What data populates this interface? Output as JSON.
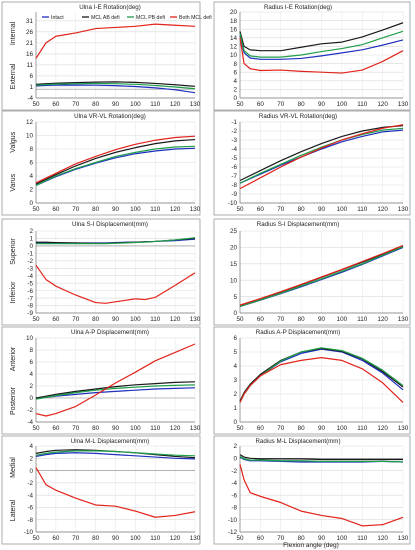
{
  "figure": {
    "x_axis_label": "Flexion angle (deg)",
    "legend": [
      "Intact",
      "MCL AB defi",
      "MCL PB defi",
      "Both MCL defi"
    ],
    "series_colors": {
      "Intact": "#1f2fbf",
      "MCL AB defi": "#1a1a1a",
      "MCL PB defi": "#1f9e4a",
      "Both MCL defi": "#e2231a"
    }
  },
  "chart_data": [
    {
      "type": "line",
      "title": "Ulna I-E Rotation(deg)",
      "side_labels": [
        "Internal",
        "External"
      ],
      "ylim": [
        -4,
        35
      ],
      "yticks": [
        -4,
        1,
        6,
        11,
        16,
        21,
        26,
        31
      ],
      "xlim": [
        50,
        130
      ],
      "xticks": [
        50,
        60,
        70,
        80,
        90,
        100,
        110,
        120,
        130
      ],
      "x": [
        50,
        55,
        60,
        70,
        80,
        90,
        100,
        110,
        120,
        130
      ],
      "legend_position": "top",
      "series": [
        {
          "name": "Intact",
          "values": [
            1.5,
            1.7,
            1.8,
            1.9,
            1.8,
            1.6,
            1.2,
            0.6,
            -0.3,
            -1.6
          ]
        },
        {
          "name": "MCL AB defi",
          "values": [
            2.2,
            2.5,
            2.7,
            3.0,
            3.2,
            3.3,
            3.1,
            2.6,
            2.0,
            1.3
          ]
        },
        {
          "name": "MCL PB defi",
          "values": [
            1.8,
            2.1,
            2.3,
            2.5,
            2.6,
            2.5,
            2.2,
            1.7,
            1.0,
            0.2
          ]
        },
        {
          "name": "Both MCL defi",
          "values": [
            14,
            21,
            24,
            25.5,
            27.5,
            28,
            28.5,
            29.5,
            29,
            28.5
          ]
        }
      ]
    },
    {
      "type": "line",
      "title": "Radius I-E Rotation(deg)",
      "side_labels": [],
      "ylim": [
        0,
        20
      ],
      "yticks": [
        0,
        2,
        4,
        6,
        8,
        10,
        12,
        14,
        16,
        18,
        20
      ],
      "xlim": [
        50,
        130
      ],
      "xticks": [
        50,
        60,
        70,
        80,
        90,
        100,
        110,
        120,
        130
      ],
      "x": [
        50,
        52,
        55,
        60,
        70,
        80,
        90,
        100,
        110,
        120,
        130
      ],
      "series": [
        {
          "name": "Intact",
          "values": [
            14.5,
            10.5,
            9.3,
            9.0,
            9.0,
            9.2,
            9.8,
            10.5,
            11.2,
            12.3,
            13.5
          ]
        },
        {
          "name": "MCL AB defi",
          "values": [
            15.5,
            12.0,
            11.2,
            11.0,
            11.0,
            11.8,
            12.6,
            13.0,
            14.2,
            15.8,
            17.5
          ]
        },
        {
          "name": "MCL PB defi",
          "values": [
            15.0,
            11.0,
            9.8,
            9.5,
            9.5,
            10.0,
            10.8,
            11.5,
            12.4,
            14.0,
            15.5
          ]
        },
        {
          "name": "Both MCL defi",
          "values": [
            14.0,
            8.0,
            6.8,
            6.4,
            6.5,
            6.2,
            6.0,
            5.8,
            6.5,
            8.5,
            11.0
          ]
        }
      ]
    },
    {
      "type": "line",
      "title": "Ulna VR-VL Rotation(deg)",
      "side_labels": [
        "Valgus",
        "Varus"
      ],
      "ylim": [
        0,
        12
      ],
      "yticks": [
        0,
        2,
        4,
        6,
        8,
        10,
        12
      ],
      "xlim": [
        50,
        130
      ],
      "xticks": [
        50,
        60,
        70,
        80,
        90,
        100,
        110,
        120,
        130
      ],
      "x": [
        50,
        60,
        70,
        80,
        90,
        100,
        110,
        120,
        130
      ],
      "series": [
        {
          "name": "Intact",
          "values": [
            2.6,
            3.9,
            5.0,
            5.9,
            6.7,
            7.3,
            7.7,
            8.0,
            8.1
          ]
        },
        {
          "name": "MCL AB defi",
          "values": [
            2.8,
            4.2,
            5.5,
            6.6,
            7.5,
            8.2,
            8.8,
            9.2,
            9.4
          ]
        },
        {
          "name": "MCL PB defi",
          "values": [
            2.6,
            4.0,
            5.1,
            6.0,
            6.9,
            7.5,
            8.0,
            8.3,
            8.4
          ]
        },
        {
          "name": "Both MCL defi",
          "values": [
            3.0,
            4.4,
            5.8,
            6.9,
            7.9,
            8.7,
            9.3,
            9.7,
            9.9
          ]
        }
      ]
    },
    {
      "type": "line",
      "title": "Radius VR-VL Rotation(deg)",
      "side_labels": [],
      "ylim": [
        -10,
        -1
      ],
      "yticks": [
        -10,
        -9,
        -8,
        -7,
        -6,
        -5,
        -4,
        -3,
        -2,
        -1
      ],
      "xlim": [
        50,
        130
      ],
      "xticks": [
        50,
        60,
        70,
        80,
        90,
        100,
        110,
        120,
        130
      ],
      "x": [
        50,
        60,
        70,
        80,
        90,
        100,
        110,
        120,
        130
      ],
      "series": [
        {
          "name": "Intact",
          "values": [
            -7.8,
            -6.8,
            -5.8,
            -4.9,
            -4.0,
            -3.2,
            -2.6,
            -2.1,
            -1.9
          ]
        },
        {
          "name": "MCL AB defi",
          "values": [
            -7.5,
            -6.4,
            -5.3,
            -4.3,
            -3.4,
            -2.6,
            -2.0,
            -1.6,
            -1.4
          ]
        },
        {
          "name": "MCL PB defi",
          "values": [
            -7.8,
            -6.7,
            -5.7,
            -4.7,
            -3.8,
            -3.0,
            -2.4,
            -1.9,
            -1.7
          ]
        },
        {
          "name": "Both MCL defi",
          "values": [
            -8.4,
            -7.2,
            -6.0,
            -4.9,
            -3.9,
            -3.0,
            -2.3,
            -1.7,
            -1.3
          ]
        }
      ]
    },
    {
      "type": "line",
      "title": "Ulna S-I Displacement(mm)",
      "side_labels": [
        "Superior",
        "Inferior"
      ],
      "ylim": [
        -9,
        2
      ],
      "yticks": [
        -9,
        -8,
        -7,
        -6,
        -5,
        -4,
        -3,
        -2,
        -1,
        0,
        1,
        2
      ],
      "xlim": [
        50,
        130
      ],
      "xticks": [
        50,
        60,
        70,
        80,
        90,
        100,
        110,
        120,
        130
      ],
      "x": [
        50,
        55,
        60,
        70,
        80,
        85,
        90,
        95,
        100,
        105,
        110,
        120,
        130
      ],
      "series": [
        {
          "name": "Intact",
          "values": [
            0.4,
            0.4,
            0.4,
            0.4,
            0.4,
            0.4,
            0.45,
            0.5,
            0.5,
            0.55,
            0.6,
            0.7,
            0.9
          ]
        },
        {
          "name": "MCL AB defi",
          "values": [
            0.5,
            0.5,
            0.45,
            0.4,
            0.35,
            0.35,
            0.4,
            0.45,
            0.5,
            0.55,
            0.6,
            0.8,
            1.0
          ]
        },
        {
          "name": "MCL PB defi",
          "values": [
            0.3,
            0.3,
            0.3,
            0.3,
            0.3,
            0.3,
            0.35,
            0.4,
            0.45,
            0.5,
            0.6,
            0.8,
            1.1
          ]
        },
        {
          "name": "Both MCL defi",
          "values": [
            -2.6,
            -4.5,
            -5.4,
            -6.6,
            -7.6,
            -7.7,
            -7.5,
            -7.3,
            -7.1,
            -7.2,
            -6.9,
            -5.3,
            -3.6
          ]
        }
      ]
    },
    {
      "type": "line",
      "title": "Radius S-I Displacement(mm)",
      "side_labels": [],
      "ylim": [
        0,
        25
      ],
      "yticks": [
        0,
        5,
        10,
        15,
        20,
        25
      ],
      "xlim": [
        50,
        130
      ],
      "xticks": [
        50,
        60,
        70,
        80,
        90,
        100,
        110,
        120,
        130
      ],
      "x": [
        50,
        60,
        70,
        80,
        90,
        100,
        110,
        120,
        130
      ],
      "series": [
        {
          "name": "Intact",
          "values": [
            2.0,
            3.9,
            5.9,
            8.0,
            10.2,
            12.4,
            14.8,
            17.4,
            20.0
          ]
        },
        {
          "name": "MCL AB defi",
          "values": [
            2.3,
            4.3,
            6.4,
            8.6,
            10.9,
            13.2,
            15.5,
            17.9,
            20.4
          ]
        },
        {
          "name": "MCL PB defi",
          "values": [
            2.0,
            4.0,
            6.0,
            8.2,
            10.4,
            12.7,
            15.0,
            17.6,
            20.2
          ]
        },
        {
          "name": "Both MCL defi",
          "values": [
            2.4,
            4.4,
            6.5,
            8.7,
            11.0,
            13.3,
            15.7,
            18.1,
            20.6
          ]
        }
      ]
    },
    {
      "type": "line",
      "title": "Ulna A-P Displacement(mm)",
      "side_labels": [
        "Anterior",
        "Posterior"
      ],
      "ylim": [
        -4,
        10
      ],
      "yticks": [
        -4,
        -2,
        0,
        2,
        4,
        6,
        8,
        10
      ],
      "xlim": [
        50,
        130
      ],
      "xticks": [
        50,
        60,
        70,
        80,
        90,
        100,
        110,
        120,
        130
      ],
      "x": [
        50,
        55,
        60,
        70,
        80,
        90,
        100,
        110,
        120,
        130
      ],
      "series": [
        {
          "name": "Intact",
          "values": [
            -0.1,
            0.1,
            0.3,
            0.6,
            0.9,
            1.1,
            1.3,
            1.5,
            1.6,
            1.7
          ]
        },
        {
          "name": "MCL AB defi",
          "values": [
            0.0,
            0.3,
            0.6,
            1.1,
            1.5,
            1.9,
            2.2,
            2.4,
            2.6,
            2.7
          ]
        },
        {
          "name": "MCL PB defi",
          "values": [
            -0.2,
            0.1,
            0.4,
            0.9,
            1.3,
            1.6,
            1.8,
            2.0,
            2.1,
            2.2
          ]
        },
        {
          "name": "Both MCL defi",
          "values": [
            -2.6,
            -3.0,
            -2.6,
            -1.4,
            0.5,
            2.5,
            4.3,
            6.2,
            7.6,
            9.0
          ]
        }
      ]
    },
    {
      "type": "line",
      "title": "Radius A-P Displacement(mm)",
      "side_labels": [],
      "ylim": [
        0,
        6
      ],
      "yticks": [
        0,
        1,
        2,
        3,
        4,
        5,
        6
      ],
      "xlim": [
        50,
        130
      ],
      "xticks": [
        50,
        60,
        70,
        80,
        90,
        100,
        110,
        120,
        130
      ],
      "x": [
        50,
        52,
        55,
        60,
        70,
        80,
        90,
        100,
        110,
        120,
        130
      ],
      "series": [
        {
          "name": "Intact",
          "values": [
            1.4,
            2.0,
            2.6,
            3.3,
            4.3,
            4.9,
            5.2,
            5.0,
            4.4,
            3.5,
            2.3
          ]
        },
        {
          "name": "MCL AB defi",
          "values": [
            1.5,
            2.1,
            2.7,
            3.4,
            4.4,
            5.0,
            5.25,
            5.05,
            4.5,
            3.6,
            2.5
          ]
        },
        {
          "name": "MCL PB defi",
          "values": [
            1.4,
            2.0,
            2.6,
            3.3,
            4.35,
            5.0,
            5.3,
            5.1,
            4.55,
            3.7,
            2.6
          ]
        },
        {
          "name": "Both MCL defi",
          "values": [
            1.4,
            2.0,
            2.6,
            3.3,
            4.1,
            4.4,
            4.6,
            4.4,
            3.8,
            2.8,
            1.4
          ]
        }
      ]
    },
    {
      "type": "line",
      "title": "Ulna M-L Displacement(mm)",
      "side_labels": [
        "Medial",
        "Lateral"
      ],
      "ylim": [
        -10,
        4
      ],
      "yticks": [
        -10,
        -8,
        -6,
        -4,
        -2,
        0,
        2,
        4
      ],
      "xlim": [
        50,
        130
      ],
      "xticks": [
        50,
        60,
        70,
        80,
        90,
        100,
        110,
        120,
        130
      ],
      "x": [
        50,
        55,
        60,
        70,
        80,
        90,
        100,
        110,
        120,
        130
      ],
      "series": [
        {
          "name": "Intact",
          "values": [
            2.3,
            2.6,
            2.8,
            2.9,
            2.8,
            2.6,
            2.4,
            2.2,
            2.0,
            1.9
          ]
        },
        {
          "name": "MCL AB defi",
          "values": [
            2.8,
            3.1,
            3.3,
            3.4,
            3.3,
            3.1,
            2.9,
            2.6,
            2.3,
            2.1
          ]
        },
        {
          "name": "MCL PB defi",
          "values": [
            2.5,
            2.8,
            3.0,
            3.2,
            3.2,
            3.1,
            2.9,
            2.7,
            2.5,
            2.4
          ]
        },
        {
          "name": "Both MCL defi",
          "values": [
            0.5,
            -2.3,
            -3.2,
            -4.5,
            -5.6,
            -5.8,
            -6.6,
            -7.6,
            -7.3,
            -6.7
          ]
        }
      ]
    },
    {
      "type": "line",
      "title": "Radius M-L Displacement(mm)",
      "side_labels": [],
      "ylim": [
        -12,
        2
      ],
      "yticks": [
        -12,
        -10,
        -8,
        -6,
        -4,
        -2,
        0,
        2
      ],
      "xlim": [
        50,
        130
      ],
      "xticks": [
        50,
        60,
        70,
        80,
        90,
        100,
        110,
        120,
        130
      ],
      "x": [
        50,
        52,
        55,
        60,
        70,
        80,
        90,
        100,
        110,
        120,
        130
      ],
      "series": [
        {
          "name": "Intact",
          "values": [
            0.2,
            -0.2,
            -0.4,
            -0.4,
            -0.5,
            -0.6,
            -0.6,
            -0.6,
            -0.6,
            -0.5,
            -0.6
          ]
        },
        {
          "name": "MCL AB defi",
          "values": [
            0.6,
            0.2,
            0.0,
            -0.1,
            -0.1,
            -0.1,
            -0.2,
            -0.2,
            -0.2,
            -0.2,
            -0.2
          ]
        },
        {
          "name": "MCL PB defi",
          "values": [
            0.3,
            -0.1,
            -0.3,
            -0.3,
            -0.4,
            -0.4,
            -0.5,
            -0.5,
            -0.5,
            -0.5,
            -0.6
          ]
        },
        {
          "name": "Both MCL defi",
          "values": [
            -1.0,
            -3.5,
            -5.6,
            -6.2,
            -7.2,
            -8.6,
            -9.3,
            -9.8,
            -11.0,
            -10.8,
            -9.6
          ]
        }
      ]
    }
  ]
}
